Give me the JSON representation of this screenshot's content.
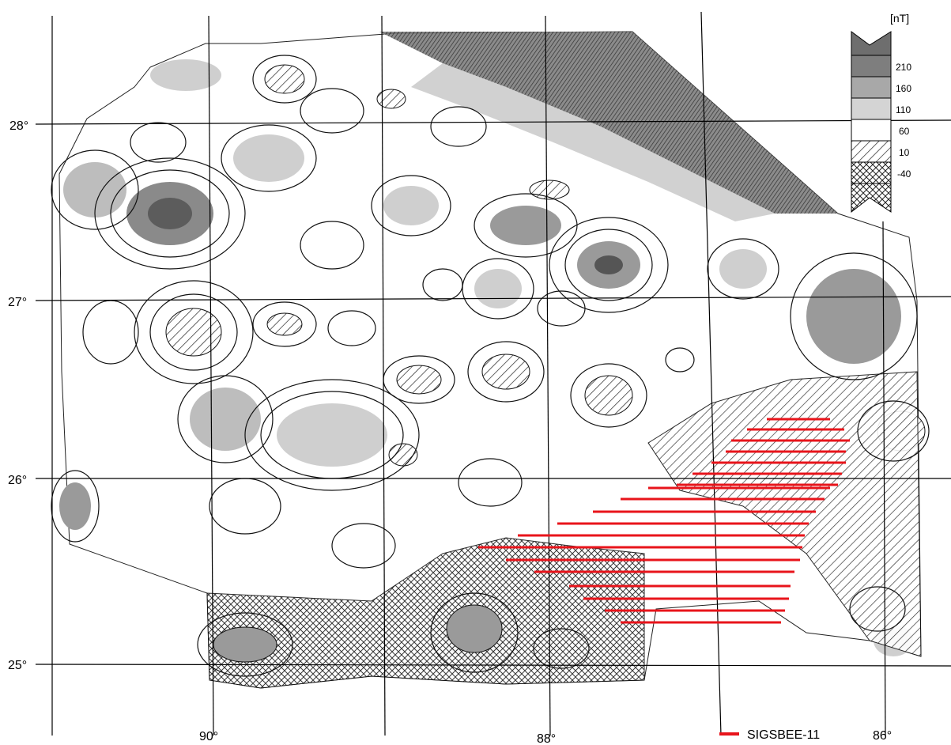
{
  "map": {
    "units_label": "[nT]",
    "latitude_labels": [
      "28°",
      "27°",
      "26°",
      "25°"
    ],
    "longitude_labels": [
      "90°",
      "88°",
      "86°"
    ],
    "legend": {
      "levels": [
        "210",
        "160",
        "110",
        "60",
        "10",
        "-40"
      ],
      "fill_colors": [
        "#6e6e6e",
        "#9a9a9a",
        "#cfcfcf",
        "#ffffff",
        "hatch",
        "crosshatch"
      ]
    },
    "track_legend": {
      "label": "SIGSBEE-11",
      "color": "#e8141b"
    },
    "anomaly_palette": {
      "high": "#8a8a8a",
      "mid": "#bdbdbd",
      "low": "#dcdcdc",
      "neg_hatch": "#333333"
    }
  }
}
